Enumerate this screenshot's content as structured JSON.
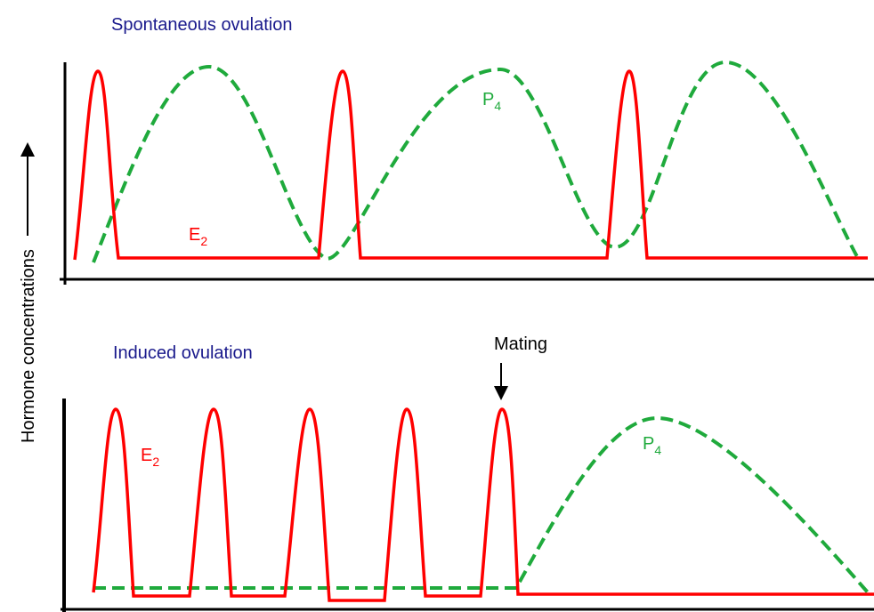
{
  "panels": [
    {
      "title": "Spontaneous ovulation",
      "e2_label": "E",
      "e2_sub": "2",
      "p4_label": "P",
      "p4_sub": "4"
    },
    {
      "title": "Induced ovulation",
      "e2_label": "E",
      "e2_sub": "2",
      "p4_label": "P",
      "p4_sub": "4",
      "event_label": "Mating"
    }
  ],
  "y_axis_label": "Hormone concentrations",
  "colors": {
    "estradiol": "#ff0000",
    "progesterone": "#1faa3c",
    "title": "#1a1a8c",
    "axis": "#000000"
  }
}
